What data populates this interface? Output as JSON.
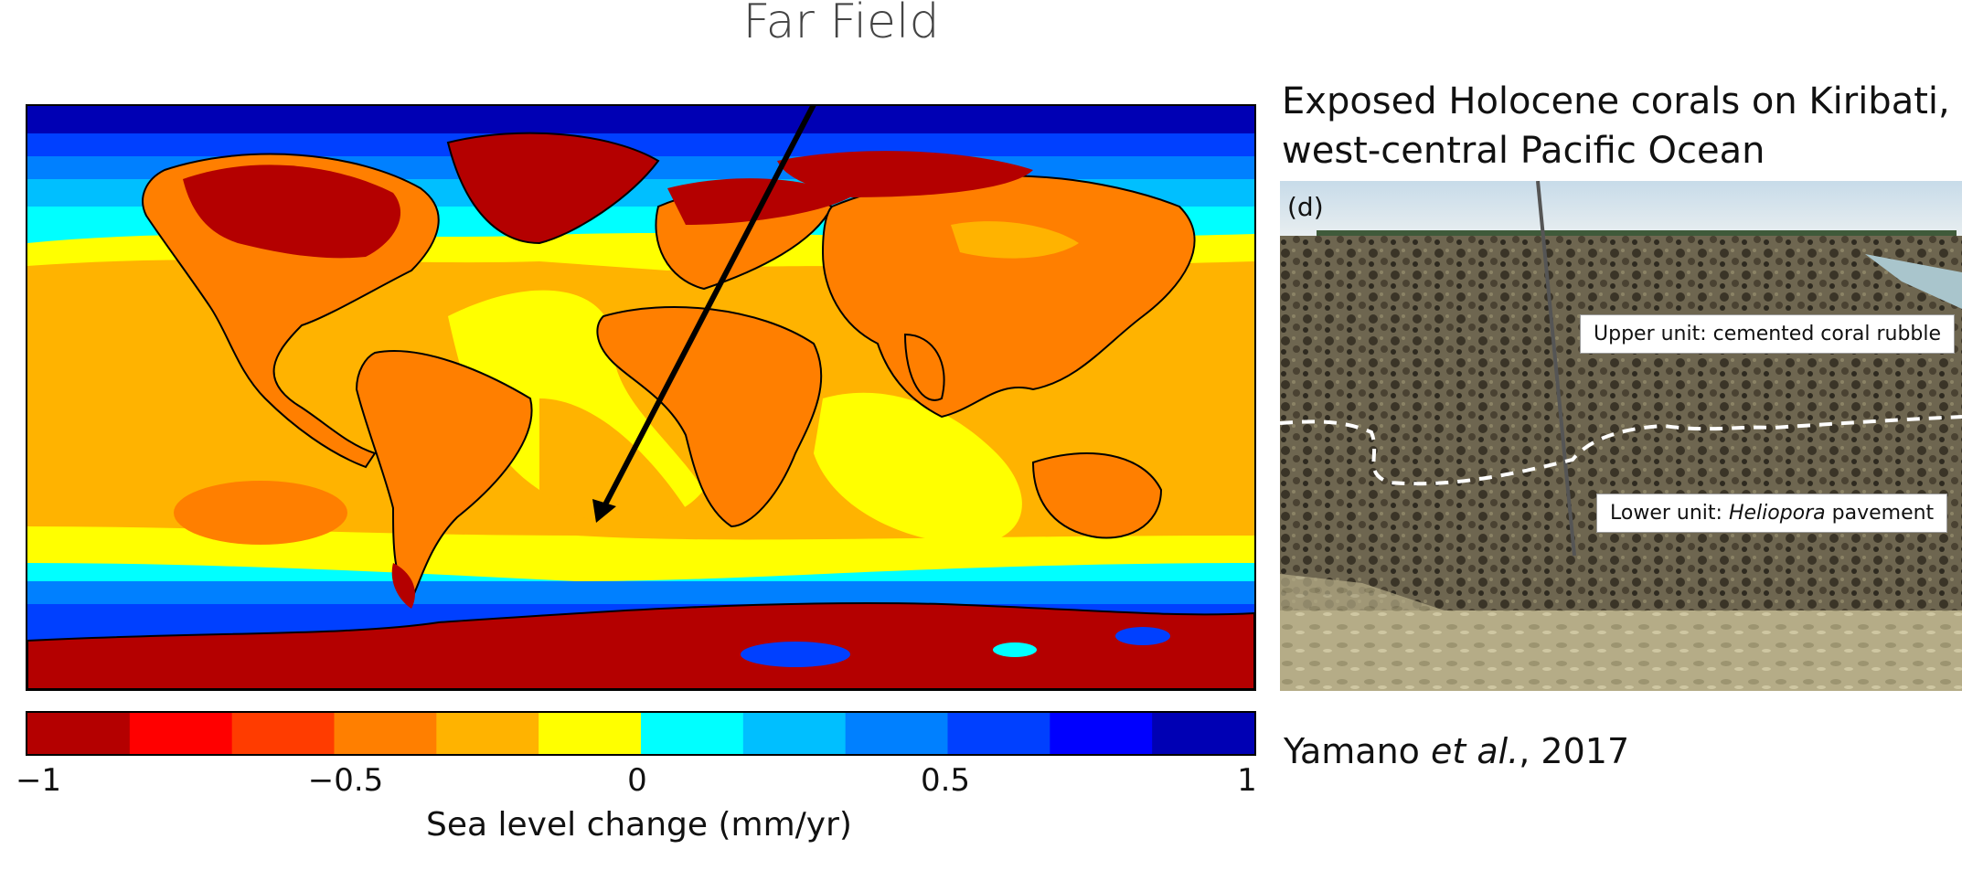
{
  "arrow_label": "Far Field",
  "map": {
    "colors": {
      "dark_red": "#b40000",
      "red": "#ff0000",
      "red_orange": "#ff3c00",
      "orange": "#ff7f00",
      "amber": "#ffb300",
      "yellow": "#ffff00",
      "cyan": "#00ffff",
      "sky": "#00bfff",
      "blue_light": "#0080ff",
      "blue": "#0040ff",
      "blue_deep": "#0000ff",
      "navy": "#0000b4"
    }
  },
  "colorbar": {
    "title": "Sea level change (mm/yr)",
    "ticks": [
      "−1",
      "−0.5",
      "0",
      "0.5",
      "1"
    ],
    "colors": [
      "#b40000",
      "#ff0000",
      "#ff3c00",
      "#ff7f00",
      "#ffb300",
      "#ffff00",
      "#00ffff",
      "#00bfff",
      "#0080ff",
      "#0040ff",
      "#0000ff",
      "#0000b4"
    ]
  },
  "photo": {
    "title_line1": "Exposed Holocene corals on Kiribati,",
    "title_line2": "west-central Pacific Ocean",
    "panel_letter": "(d)",
    "upper_label": "Upper unit: cemented coral rubble",
    "lower_label_prefix": "Lower unit: ",
    "lower_label_italic": "Heliopora",
    "lower_label_suffix": " pavement"
  },
  "citation": {
    "author": "Yamano ",
    "etal": "et al.",
    "year": ", 2017"
  }
}
